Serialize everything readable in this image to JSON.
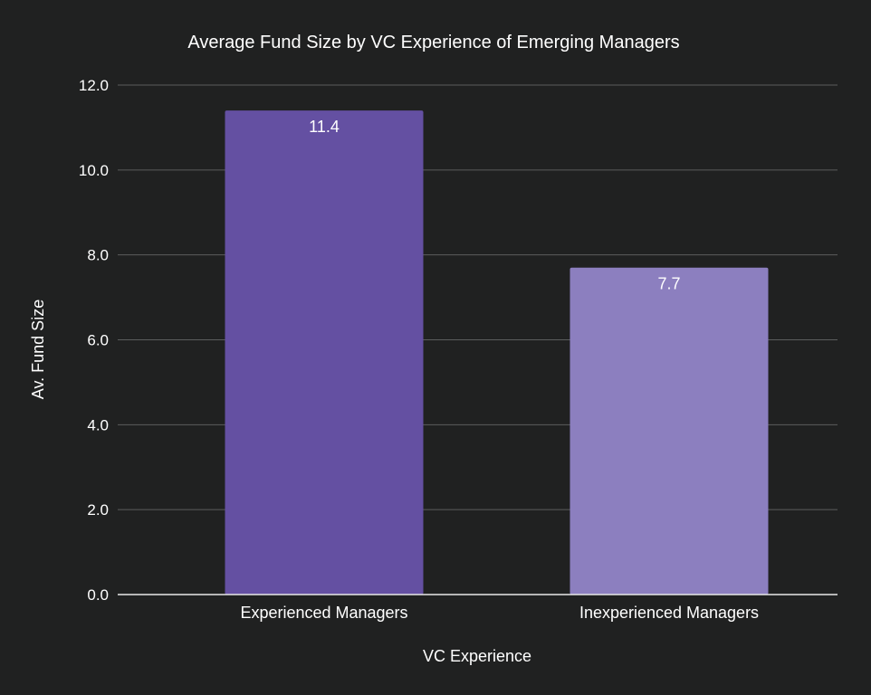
{
  "chart_data": {
    "type": "bar",
    "title": "Average Fund Size by VC Experience of Emerging Managers",
    "xlabel": "VC Experience",
    "ylabel": "Av. Fund Size",
    "categories": [
      "Experienced Managers",
      "Inexperienced Managers"
    ],
    "values": [
      11.4,
      7.7
    ],
    "data_labels": [
      "11.4",
      "7.7"
    ],
    "bar_colors": [
      "#6450a2",
      "#8c7fbf"
    ],
    "ylim": [
      0,
      12
    ],
    "yticks": [
      0,
      2,
      4,
      6,
      8,
      10,
      12
    ],
    "ytick_labels": [
      "0.0",
      "2.0",
      "4.0",
      "6.0",
      "8.0",
      "10.0",
      "12.0"
    ],
    "grid": true,
    "legend": "none"
  },
  "colors": {
    "background": "#202121",
    "text": "#ffffff",
    "gridline": "#5b5d5d",
    "baseline": "#e8e8e8"
  }
}
